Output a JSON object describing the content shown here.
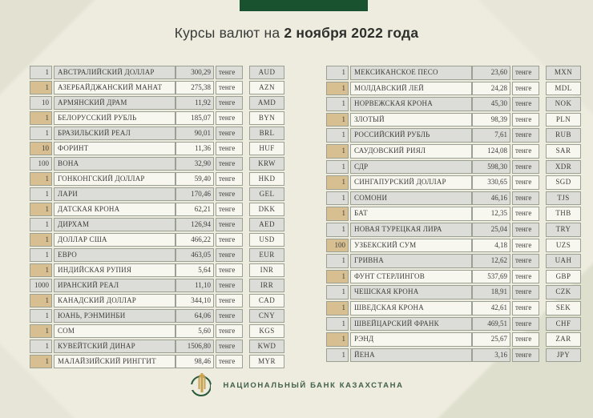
{
  "title": {
    "prefix": "Курсы валют на ",
    "date": "2 ноября 2022 года"
  },
  "tables": {
    "left": {
      "rows": [
        {
          "qty": "1",
          "name": "АВСТРАЛИЙСКИЙ ДОЛЛАР",
          "value": "300,29",
          "unit": "тенге",
          "code": "AUD"
        },
        {
          "qty": "1",
          "name": "АЗЕРБАЙДЖАНСКИЙ МАНАТ",
          "value": "275,38",
          "unit": "тенге",
          "code": "AZN"
        },
        {
          "qty": "10",
          "name": "АРМЯНСКИЙ ДРАМ",
          "value": "11,92",
          "unit": "тенге",
          "code": "AMD"
        },
        {
          "qty": "1",
          "name": "БЕЛОРУССКИЙ РУБЛЬ",
          "value": "185,07",
          "unit": "тенге",
          "code": "BYN"
        },
        {
          "qty": "1",
          "name": "БРАЗИЛЬСКИЙ РЕАЛ",
          "value": "90,01",
          "unit": "тенге",
          "code": "BRL"
        },
        {
          "qty": "10",
          "name": "ФОРИНТ",
          "value": "11,36",
          "unit": "тенге",
          "code": "HUF"
        },
        {
          "qty": "100",
          "name": "ВОНА",
          "value": "32,90",
          "unit": "тенге",
          "code": "KRW"
        },
        {
          "qty": "1",
          "name": "ГОНКОНГСКИЙ ДОЛЛАР",
          "value": "59,40",
          "unit": "тенге",
          "code": "HKD"
        },
        {
          "qty": "1",
          "name": "ЛАРИ",
          "value": "170,46",
          "unit": "тенге",
          "code": "GEL"
        },
        {
          "qty": "1",
          "name": "ДАТСКАЯ КРОНА",
          "value": "62,21",
          "unit": "тенге",
          "code": "DKK"
        },
        {
          "qty": "1",
          "name": "ДИРХАМ",
          "value": "126,94",
          "unit": "тенге",
          "code": "AED"
        },
        {
          "qty": "1",
          "name": "ДОЛЛАР США",
          "value": "466,22",
          "unit": "тенге",
          "code": "USD"
        },
        {
          "qty": "1",
          "name": "ЕВРО",
          "value": "463,05",
          "unit": "тенге",
          "code": "EUR"
        },
        {
          "qty": "1",
          "name": "ИНДИЙСКАЯ РУПИЯ",
          "value": "5,64",
          "unit": "тенге",
          "code": "INR"
        },
        {
          "qty": "1000",
          "name": "ИРАНСКИЙ РЕАЛ",
          "value": "11,10",
          "unit": "тенге",
          "code": "IRR"
        },
        {
          "qty": "1",
          "name": "КАНАДСКИЙ ДОЛЛАР",
          "value": "344,10",
          "unit": "тенге",
          "code": "CAD"
        },
        {
          "qty": "1",
          "name": "ЮАНЬ, РЭНМИНБИ",
          "value": "64,06",
          "unit": "тенге",
          "code": "CNY"
        },
        {
          "qty": "1",
          "name": "СОМ",
          "value": "5,60",
          "unit": "тенге",
          "code": "KGS"
        },
        {
          "qty": "1",
          "name": "КУВЕЙТСКИЙ ДИНАР",
          "value": "1506,80",
          "unit": "тенге",
          "code": "KWD"
        },
        {
          "qty": "1",
          "name": "МАЛАЙЗИЙСКИЙ РИНГГИТ",
          "value": "98,46",
          "unit": "тенге",
          "code": "MYR"
        }
      ]
    },
    "right": {
      "rows": [
        {
          "qty": "1",
          "name": "МЕКСИКАНСКОЕ ПЕСО",
          "value": "23,60",
          "unit": "тенге",
          "code": "MXN"
        },
        {
          "qty": "1",
          "name": "МОЛДАВСКИЙ ЛЕЙ",
          "value": "24,28",
          "unit": "тенге",
          "code": "MDL"
        },
        {
          "qty": "1",
          "name": "НОРВЕЖСКАЯ КРОНА",
          "value": "45,30",
          "unit": "тенге",
          "code": "NOK"
        },
        {
          "qty": "1",
          "name": "ЗЛОТЫЙ",
          "value": "98,39",
          "unit": "тенге",
          "code": "PLN"
        },
        {
          "qty": "1",
          "name": "РОССИЙСКИЙ РУБЛЬ",
          "value": "7,61",
          "unit": "тенге",
          "code": "RUB"
        },
        {
          "qty": "1",
          "name": "САУДОВСКИЙ РИЯЛ",
          "value": "124,08",
          "unit": "тенге",
          "code": "SAR"
        },
        {
          "qty": "1",
          "name": "СДР",
          "value": "598,30",
          "unit": "тенге",
          "code": "XDR"
        },
        {
          "qty": "1",
          "name": "СИНГАПУРСКИЙ ДОЛЛАР",
          "value": "330,65",
          "unit": "тенге",
          "code": "SGD"
        },
        {
          "qty": "1",
          "name": "СОМОНИ",
          "value": "46,16",
          "unit": "тенге",
          "code": "TJS"
        },
        {
          "qty": "1",
          "name": "БАТ",
          "value": "12,35",
          "unit": "тенге",
          "code": "THB"
        },
        {
          "qty": "1",
          "name": "НОВАЯ ТУРЕЦКАЯ ЛИРА",
          "value": "25,04",
          "unit": "тенге",
          "code": "TRY"
        },
        {
          "qty": "100",
          "name": "УЗБЕКСКИЙ СУМ",
          "value": "4,18",
          "unit": "тенге",
          "code": "UZS"
        },
        {
          "qty": "1",
          "name": "ГРИВНА",
          "value": "12,62",
          "unit": "тенге",
          "code": "UAH"
        },
        {
          "qty": "1",
          "name": "ФУНТ СТЕРЛИНГОВ",
          "value": "537,69",
          "unit": "тенге",
          "code": "GBP"
        },
        {
          "qty": "1",
          "name": "ЧЕШСКАЯ КРОНА",
          "value": "18,91",
          "unit": "тенге",
          "code": "CZK"
        },
        {
          "qty": "1",
          "name": "ШВЕДСКАЯ КРОНА",
          "value": "42,61",
          "unit": "тенге",
          "code": "SEK"
        },
        {
          "qty": "1",
          "name": "ШВЕЙЦАРСКИЙ ФРАНК",
          "value": "469,51",
          "unit": "тенге",
          "code": "CHF"
        },
        {
          "qty": "1",
          "name": "РЭНД",
          "value": "25,67",
          "unit": "тенге",
          "code": "ZAR"
        },
        {
          "qty": "1",
          "name": "ЙЕНА",
          "value": "3,16",
          "unit": "тенге",
          "code": "JPY"
        }
      ]
    }
  },
  "footer": {
    "bank_name": "НАЦИОНАЛЬНЫЙ БАНК КАЗАХСТАНА",
    "emblem_icon": "national-bank-emblem-icon"
  },
  "colors": {
    "banner_green": "#19522f",
    "row_gray": "#dcdcd8",
    "row_light": "#f7f6ef",
    "qty_tan": "#d7bf92",
    "footer_green": "#43604b",
    "gold": "#c8a24f"
  }
}
